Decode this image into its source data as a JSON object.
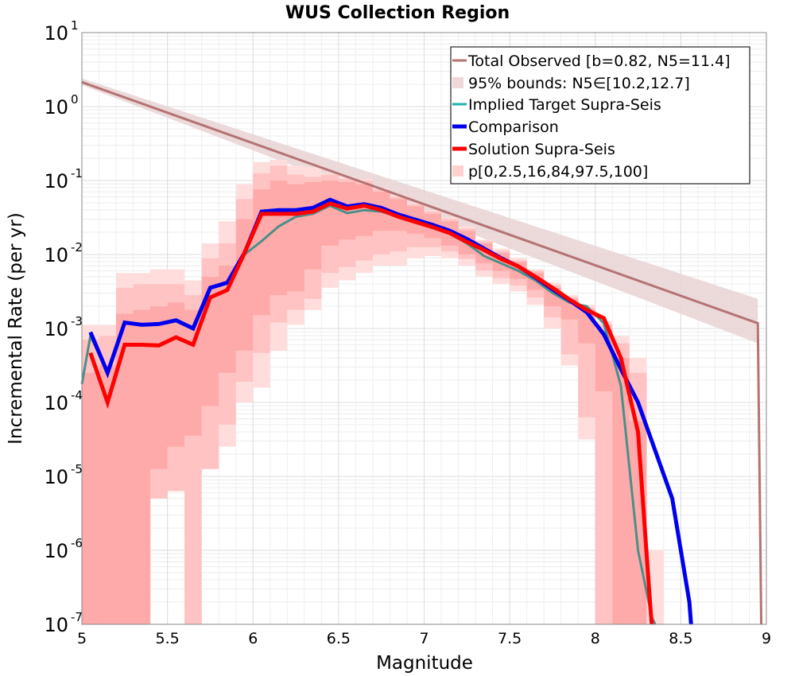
{
  "chart_data": {
    "type": "line",
    "title": "WUS Collection Region",
    "xlabel": "Magnitude",
    "ylabel": "Incremental Rate (per yr)",
    "xlim": [
      5,
      9
    ],
    "ylim_log10": [
      -7,
      1
    ],
    "y_scale": "log",
    "grid": true,
    "legend_position": "top-right",
    "x_ticks": [
      5,
      5.5,
      6,
      6.5,
      7,
      7.5,
      8,
      8.5,
      9
    ],
    "x_tick_labels": [
      "5",
      "5.5",
      "6",
      "6.5",
      "7",
      "7.5",
      "8",
      "8.5",
      "9"
    ],
    "y_tick_exponents": [
      -7,
      -6,
      -5,
      -4,
      -3,
      -2,
      -1,
      0,
      1
    ],
    "y_tick_base": "10",
    "y_tick_exponent_labels": [
      "-7",
      "-6",
      "-5",
      "-4",
      "-3",
      "-2",
      "-1",
      "0",
      "1"
    ],
    "legend": [
      {
        "label": "Total Observed [b=0.82, N5=11.4]",
        "kind": "line",
        "color": "#b57373",
        "width": 3
      },
      {
        "label": "95% bounds: N5∈[10.2,12.7]",
        "kind": "band",
        "color": "#eed8da"
      },
      {
        "label": "Implied Target Supra-Seis",
        "kind": "line",
        "color": "#20b2aa",
        "width": 3
      },
      {
        "label": "Comparison",
        "kind": "line",
        "color": "#0000ee",
        "width": 5
      },
      {
        "label": "Solution Supra-Seis",
        "kind": "line",
        "color": "#ff0000",
        "width": 5
      },
      {
        "label": "p[0,2.5,16,84,97.5,100]",
        "kind": "band",
        "color": "#ffd0d0"
      }
    ],
    "x_bins": [
      5.05,
      5.15,
      5.25,
      5.35,
      5.45,
      5.55,
      5.65,
      5.75,
      5.85,
      5.95,
      6.05,
      6.15,
      6.25,
      6.35,
      6.45,
      6.55,
      6.65,
      6.75,
      6.85,
      6.95,
      7.05,
      7.15,
      7.25,
      7.35,
      7.45,
      7.55,
      7.65,
      7.75,
      7.85,
      7.95,
      8.05,
      8.15,
      8.25,
      8.35,
      8.45,
      8.55
    ],
    "series": [
      {
        "name": "Total Observed [b=0.82, N5=11.4]",
        "color": "#b57373",
        "x": [
          5.0,
          8.95,
          8.97
        ],
        "log10_y": [
          0.33,
          -2.93,
          -7.0
        ]
      },
      {
        "name": "95% bounds: N5∈[10.2,12.7]",
        "color": "#eed8da",
        "x": [
          5.0,
          8.95
        ],
        "log10_y_low": [
          0.29,
          -3.2
        ],
        "log10_y_high": [
          0.38,
          -2.6
        ]
      },
      {
        "name": "Implied Target Supra-Seis",
        "color": "#20b2aa",
        "x": [
          5.0,
          5.05,
          5.15,
          5.25,
          5.35,
          5.45,
          5.55,
          5.65,
          5.75,
          5.85,
          5.95,
          6.05,
          6.15,
          6.25,
          6.35,
          6.45,
          6.55,
          6.65,
          6.75,
          6.85,
          6.95,
          7.05,
          7.15,
          7.25,
          7.35,
          7.45,
          7.55,
          7.65,
          7.75,
          7.85,
          7.95,
          8.05,
          8.15,
          8.25,
          8.33,
          8.35
        ],
        "log10_y": [
          -3.75,
          -3.1,
          -3.6,
          -2.92,
          -2.96,
          -2.94,
          -2.9,
          -2.98,
          -2.44,
          -2.38,
          -2.0,
          -1.82,
          -1.62,
          -1.49,
          -1.45,
          -1.34,
          -1.44,
          -1.4,
          -1.42,
          -1.49,
          -1.56,
          -1.64,
          -1.72,
          -1.85,
          -2.02,
          -2.12,
          -2.22,
          -2.35,
          -2.52,
          -2.65,
          -2.7,
          -2.93,
          -3.78,
          -6.0,
          -6.9,
          -7.0
        ]
      },
      {
        "name": "Comparison",
        "color": "#0000ee",
        "x": [
          5.05,
          5.15,
          5.25,
          5.35,
          5.45,
          5.55,
          5.65,
          5.75,
          5.85,
          5.95,
          6.05,
          6.15,
          6.25,
          6.35,
          6.45,
          6.55,
          6.65,
          6.75,
          6.85,
          6.95,
          7.05,
          7.15,
          7.25,
          7.35,
          7.45,
          7.55,
          7.65,
          7.75,
          7.85,
          7.95,
          8.05,
          8.15,
          8.25,
          8.35,
          8.45,
          8.55,
          8.56
        ],
        "log10_y": [
          -3.05,
          -3.6,
          -2.92,
          -2.95,
          -2.94,
          -2.89,
          -3.0,
          -2.45,
          -2.38,
          -1.98,
          -1.42,
          -1.4,
          -1.4,
          -1.37,
          -1.26,
          -1.35,
          -1.32,
          -1.37,
          -1.46,
          -1.53,
          -1.6,
          -1.68,
          -1.79,
          -1.92,
          -2.05,
          -2.16,
          -2.31,
          -2.47,
          -2.62,
          -2.78,
          -3.08,
          -3.55,
          -4.0,
          -4.65,
          -5.3,
          -6.7,
          -7.0
        ]
      },
      {
        "name": "Solution Supra-Seis",
        "color": "#ff0000",
        "x": [
          5.05,
          5.15,
          5.25,
          5.35,
          5.45,
          5.55,
          5.65,
          5.75,
          5.85,
          5.95,
          6.05,
          6.15,
          6.25,
          6.35,
          6.45,
          6.55,
          6.65,
          6.75,
          6.85,
          6.95,
          7.05,
          7.15,
          7.25,
          7.35,
          7.45,
          7.55,
          7.65,
          7.75,
          7.85,
          7.95,
          8.05,
          8.15,
          8.25,
          8.32,
          8.33
        ],
        "log10_y": [
          -3.33,
          -4.0,
          -3.22,
          -3.22,
          -3.23,
          -3.12,
          -3.22,
          -2.58,
          -2.48,
          -1.98,
          -1.45,
          -1.45,
          -1.45,
          -1.42,
          -1.31,
          -1.38,
          -1.34,
          -1.4,
          -1.49,
          -1.56,
          -1.63,
          -1.71,
          -1.83,
          -1.94,
          -2.06,
          -2.16,
          -2.3,
          -2.45,
          -2.61,
          -2.75,
          -2.86,
          -3.4,
          -4.4,
          -6.7,
          -7.0
        ]
      },
      {
        "name": "p[0,2.5,16,84,97.5,100]",
        "color": "#ffd0d0",
        "x": [
          5.05,
          5.15,
          5.25,
          5.35,
          5.45,
          5.55,
          5.65,
          5.75,
          5.85,
          5.95,
          6.05,
          6.15,
          6.25,
          6.35,
          6.45,
          6.55,
          6.65,
          6.75,
          6.85,
          6.95,
          7.05,
          7.15,
          7.25,
          7.35,
          7.45,
          7.55,
          7.65,
          7.75,
          7.85,
          7.95,
          8.05,
          8.15,
          8.25,
          8.35
        ],
        "log10_y_p0": [
          -7.0,
          -7.0,
          -7.0,
          -5.82,
          -5.28,
          -5.0,
          -7.0,
          -4.9,
          -4.6,
          -4.0,
          -3.8,
          -3.3,
          -2.95,
          -2.75,
          -2.45,
          -2.35,
          -2.25,
          -2.15,
          -2.15,
          -2.05,
          -2.02,
          -2.05,
          -2.15,
          -2.3,
          -2.4,
          -2.5,
          -2.68,
          -3.0,
          -3.5,
          -4.5,
          -7.0,
          -7.0,
          -7.0,
          -7.0
        ],
        "log10_y_p2_5": [
          -7.0,
          -7.0,
          -7.0,
          -7.0,
          -5.3,
          -5.2,
          -7.0,
          -4.9,
          -4.3,
          -3.72,
          -3.33,
          -2.92,
          -2.75,
          -2.6,
          -2.25,
          -2.17,
          -2.08,
          -2.0,
          -1.96,
          -1.9,
          -1.9,
          -1.96,
          -2.06,
          -2.22,
          -2.32,
          -2.42,
          -2.58,
          -2.85,
          -3.35,
          -4.2,
          -7.0,
          -7.0,
          -7.0,
          -7.0
        ],
        "log10_y_p16": [
          -7.0,
          -7.0,
          -7.0,
          -7.0,
          -4.9,
          -4.6,
          -4.45,
          -4.05,
          -3.6,
          -3.3,
          -2.82,
          -2.55,
          -2.5,
          -2.2,
          -1.88,
          -1.8,
          -1.75,
          -1.68,
          -1.68,
          -1.72,
          -1.78,
          -1.88,
          -2.0,
          -2.12,
          -2.22,
          -2.33,
          -2.48,
          -2.7,
          -2.88,
          -3.2,
          -3.85,
          -7.0,
          -7.0,
          -7.0
        ],
        "log10_y_p84": [
          -3.6,
          -3.5,
          -2.8,
          -2.75,
          -2.7,
          -2.65,
          -2.75,
          -2.3,
          -2.15,
          -1.52,
          -1.12,
          -1.0,
          -1.05,
          -1.02,
          -1.0,
          -1.02,
          -1.05,
          -1.15,
          -1.25,
          -1.35,
          -1.45,
          -1.55,
          -1.68,
          -1.85,
          -1.98,
          -2.1,
          -2.25,
          -2.45,
          -2.6,
          -2.75,
          -3.02,
          -3.4,
          -4.25,
          -7.0
        ],
        "log10_y_p97_5": [
          -3.15,
          -3.1,
          -2.45,
          -2.4,
          -2.4,
          -2.4,
          -2.55,
          -2.05,
          -1.85,
          -1.25,
          -0.9,
          -0.8,
          -0.92,
          -0.95,
          -0.92,
          -0.98,
          -1.0,
          -1.12,
          -1.22,
          -1.32,
          -1.42,
          -1.52,
          -1.65,
          -1.82,
          -1.95,
          -2.08,
          -2.22,
          -2.42,
          -2.58,
          -2.72,
          -2.95,
          -3.2,
          -3.6,
          -7.0
        ],
        "log10_y_p100": [
          -2.95,
          -2.95,
          -2.25,
          -2.25,
          -2.2,
          -2.2,
          -2.35,
          -1.85,
          -1.55,
          -1.05,
          -0.75,
          -0.72,
          -0.8,
          -0.82,
          -0.9,
          -0.95,
          -0.98,
          -1.1,
          -1.2,
          -1.3,
          -1.4,
          -1.5,
          -1.62,
          -1.8,
          -1.92,
          -2.05,
          -2.2,
          -2.38,
          -2.55,
          -2.68,
          -2.9,
          -3.1,
          -3.4,
          -6.0
        ]
      }
    ]
  }
}
